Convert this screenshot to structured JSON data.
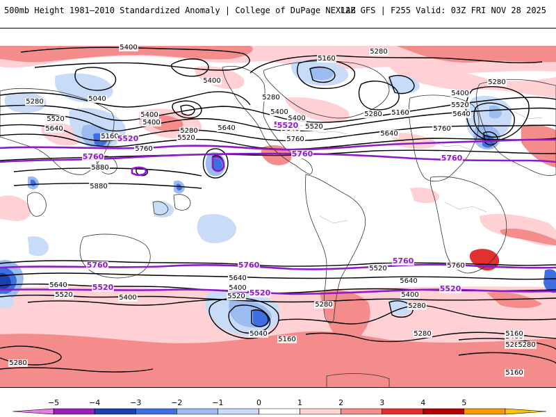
{
  "header": {
    "left_title": "500mb Height 1981–2010 Standardized Anomaly | College of DuPage NEXLAB",
    "right_title": "12Z GFS | F255 Valid: 03Z FRI NOV 28 2025"
  },
  "colorbar": {
    "ticks": [
      "−5",
      "−4",
      "−3",
      "−2",
      "−1",
      "0",
      "1",
      "2",
      "3",
      "4",
      "5"
    ],
    "colors": [
      "#e87de8",
      "#9a1fb5",
      "#1d3fb0",
      "#3d6fe0",
      "#9cbcf0",
      "#c8dcf8",
      "#ffffff",
      "#ffd0d4",
      "#f48c8c",
      "#e23030",
      "#b40000",
      "#f59a00",
      "#ffc400"
    ]
  },
  "contours": {
    "black": [
      "5400",
      "5280",
      "5160",
      "5040",
      "5520",
      "5640",
      "5760",
      "5880"
    ],
    "highlight": [
      "5520",
      "5760"
    ],
    "highlight_color": "#8e1ac8"
  },
  "map_labels": [
    {
      "t": "5400"
    },
    {
      "t": "5160"
    },
    {
      "t": "5280"
    },
    {
      "t": "5280"
    },
    {
      "t": "5400"
    },
    {
      "t": "5040"
    },
    {
      "t": "5280"
    },
    {
      "t": "5400"
    },
    {
      "t": "5520"
    },
    {
      "t": "5640"
    },
    {
      "t": "5160"
    },
    {
      "t": "5400"
    },
    {
      "t": "5280"
    },
    {
      "t": "5520"
    },
    {
      "t": "5640"
    },
    {
      "t": "5280"
    },
    {
      "t": "5400"
    },
    {
      "t": "5520"
    },
    {
      "t": "5760"
    },
    {
      "t": "5880"
    },
    {
      "t": "5880"
    },
    {
      "t": "5280"
    },
    {
      "t": "5160"
    },
    {
      "t": "5400"
    },
    {
      "t": "5520"
    },
    {
      "t": "5640"
    },
    {
      "t": "5760"
    },
    {
      "t": "5640"
    },
    {
      "t": "5760"
    },
    {
      "t": "5640"
    },
    {
      "t": "5520"
    },
    {
      "t": "5400"
    },
    {
      "t": "5760"
    },
    {
      "t": "5640"
    },
    {
      "t": "5520"
    },
    {
      "t": "5400"
    },
    {
      "t": "5280"
    },
    {
      "t": "5640"
    },
    {
      "t": "5400"
    },
    {
      "t": "5520"
    },
    {
      "t": "5280"
    },
    {
      "t": "5040"
    },
    {
      "t": "5160"
    },
    {
      "t": "5280"
    },
    {
      "t": "5400"
    },
    {
      "t": "5160"
    },
    {
      "t": "5280"
    },
    {
      "t": "5280"
    },
    {
      "t": "5160"
    },
    {
      "t": "5280"
    },
    {
      "t": "5640"
    },
    {
      "t": "5640"
    },
    {
      "t": "5520"
    },
    {
      "t": "5400"
    }
  ],
  "highlight_labels": [
    {
      "t": "5520"
    },
    {
      "t": "5520"
    },
    {
      "t": "5520"
    },
    {
      "t": "5760"
    },
    {
      "t": "5760"
    },
    {
      "t": "5760"
    },
    {
      "t": "5760"
    },
    {
      "t": "5760"
    },
    {
      "t": "5760"
    },
    {
      "t": "5520"
    },
    {
      "t": "5520"
    },
    {
      "t": "5520"
    }
  ]
}
